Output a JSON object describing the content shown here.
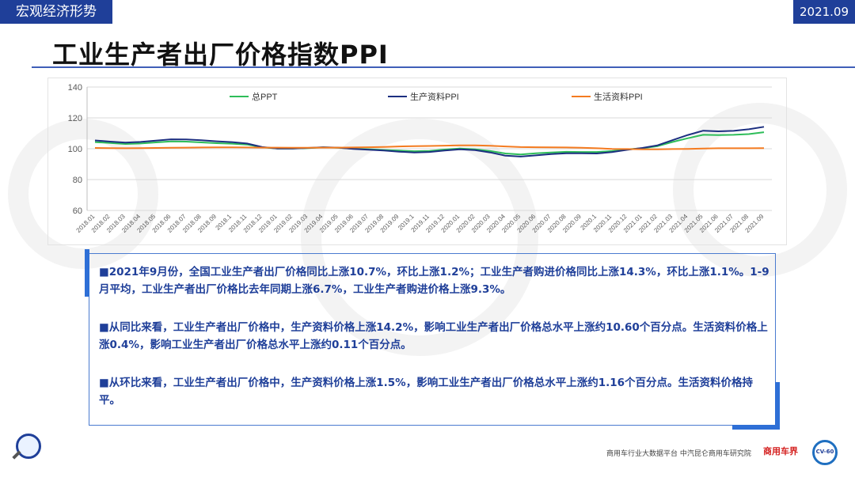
{
  "header": {
    "section_label": "宏观经济形势",
    "date_label": "2021.09",
    "title": "工业生产者出厂价格指数PPI"
  },
  "chart_data": {
    "type": "line",
    "ylim": [
      60,
      140
    ],
    "yticks": [
      60,
      80,
      100,
      120,
      140
    ],
    "categories": [
      "2018.01",
      "2018.02",
      "2018.03",
      "2018.04",
      "2018.05",
      "2018.06",
      "2018.07",
      "2018.08",
      "2018.09",
      "2018.1",
      "2018.11",
      "2018.12",
      "2019.01",
      "2019.02",
      "2019.03",
      "2019.04",
      "2019.05",
      "2019.06",
      "2019.07",
      "2019.08",
      "2019.09",
      "2019.1",
      "2019.11",
      "2019.12",
      "2020.01",
      "2020.02",
      "2020.03",
      "2020.04",
      "2020.05",
      "2020.06",
      "2020.07",
      "2020.08",
      "2020.09",
      "2020.1",
      "2020.11",
      "2020.12",
      "2021.01",
      "2021.02",
      "2021.03",
      "2021.04",
      "2021.05",
      "2021.06",
      "2021.07",
      "2021.08",
      "2021.09"
    ],
    "series": [
      {
        "name": "总PPT",
        "color": "#2ebd59",
        "values": [
          104.3,
          103.7,
          103.1,
          103.4,
          104.1,
          104.7,
          104.6,
          104.1,
          103.6,
          103.3,
          102.7,
          100.9,
          100.1,
          100.1,
          100.4,
          100.9,
          100.6,
          100.0,
          99.7,
          99.2,
          98.8,
          98.4,
          98.6,
          99.5,
          100.1,
          99.6,
          98.5,
          96.9,
          96.3,
          97.0,
          97.6,
          98.0,
          97.9,
          97.9,
          98.5,
          99.6,
          100.3,
          101.7,
          104.4,
          106.8,
          109.0,
          108.8,
          109.0,
          109.5,
          110.7
        ]
      },
      {
        "name": "生产资料PPI",
        "color": "#1c2f80",
        "values": [
          105.4,
          104.6,
          104.0,
          104.4,
          105.3,
          106.1,
          106.0,
          105.5,
          104.8,
          104.3,
          103.4,
          101.1,
          100.1,
          100.1,
          100.5,
          101.0,
          100.7,
          99.9,
          99.4,
          98.8,
          98.1,
          97.6,
          97.9,
          98.8,
          99.6,
          99.1,
          97.6,
          95.5,
          94.9,
          95.7,
          96.5,
          97.1,
          97.0,
          96.9,
          97.8,
          99.3,
          100.5,
          102.2,
          105.6,
          108.9,
          111.7,
          111.3,
          111.6,
          112.6,
          114.2
        ]
      },
      {
        "name": "生活资料PPI",
        "color": "#f47b20",
        "values": [
          100.5,
          100.4,
          100.3,
          100.4,
          100.5,
          100.6,
          100.7,
          100.8,
          100.9,
          100.9,
          100.8,
          100.7,
          100.7,
          100.6,
          100.6,
          100.7,
          100.7,
          100.8,
          101.0,
          101.2,
          101.5,
          101.7,
          101.8,
          102.0,
          102.2,
          102.2,
          101.9,
          101.5,
          101.1,
          101.0,
          100.9,
          100.8,
          100.6,
          100.3,
          99.9,
          99.8,
          99.6,
          99.6,
          99.8,
          99.9,
          100.1,
          100.3,
          100.3,
          100.3,
          100.4
        ]
      }
    ]
  },
  "notes": {
    "p1": "■2021年9月份，全国工业生产者出厂价格同比上涨10.7%，环比上涨1.2%；工业生产者购进价格同比上涨14.3%，环比上涨1.1%。1-9月平均，工业生产者出厂价格比去年同期上涨6.7%，工业生产者购进价格上涨9.3%。",
    "p2": "■从同比来看，工业生产者出厂价格中，生产资料价格上涨14.2%，影响工业生产者出厂价格总水平上涨约10.60个百分点。生活资料价格上涨0.4%，影响工业生产者出厂价格总水平上涨约0.11个百分点。",
    "p3": "■从环比来看，工业生产者出厂价格中，生产资料价格上涨1.5%，影响工业生产者出厂价格总水平上涨约1.16个百分点。生活资料价格持平。"
  },
  "footer": {
    "platform_text": "商用车行业大数据平台  中汽昆仑商用车研究院",
    "logo_text": "商用车界",
    "badge_text": "CV-60"
  }
}
